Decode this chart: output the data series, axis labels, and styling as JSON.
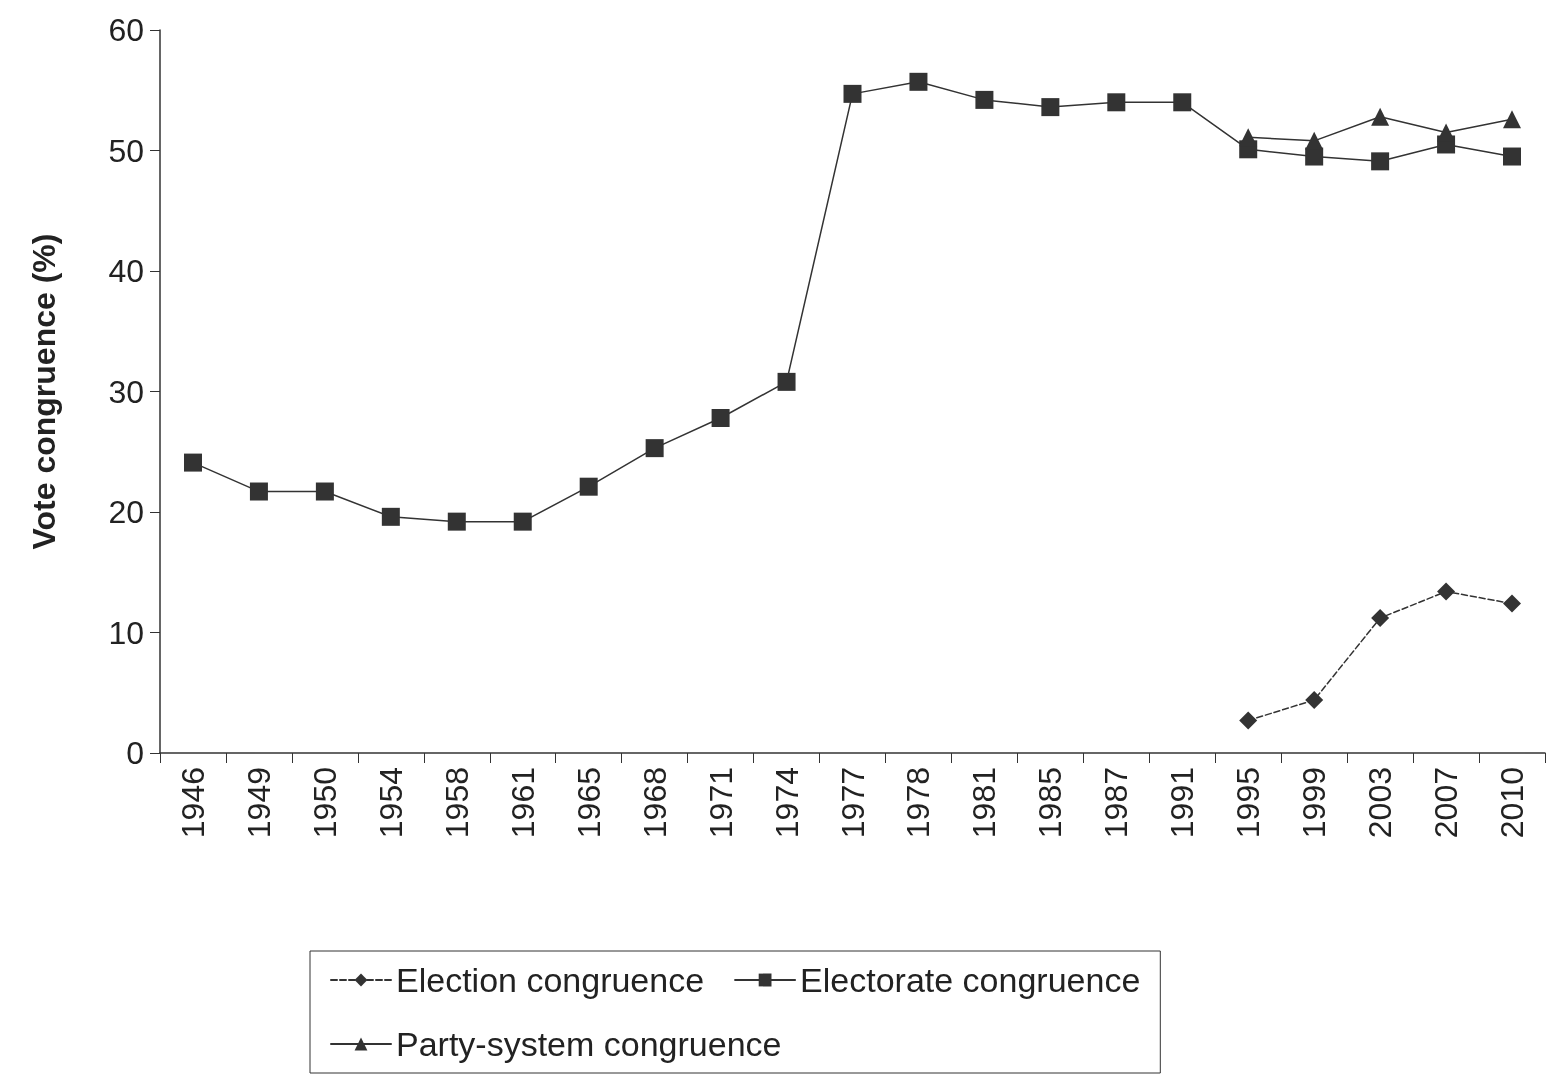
{
  "chart_data": {
    "type": "line",
    "categories": [
      "1946",
      "1949",
      "1950",
      "1954",
      "1958",
      "1961",
      "1965",
      "1968",
      "1971",
      "1974",
      "1977",
      "1978",
      "1981",
      "1985",
      "1987",
      "1991",
      "1995",
      "1999",
      "2003",
      "2007",
      "2010"
    ],
    "series": [
      {
        "name": "Election congruence",
        "color": "#333333",
        "marker": "diamond",
        "line_style": "dashed",
        "values": [
          null,
          null,
          null,
          null,
          null,
          null,
          null,
          null,
          null,
          null,
          null,
          null,
          null,
          null,
          null,
          null,
          2.7,
          4.4,
          11.2,
          13.4,
          12.4
        ]
      },
      {
        "name": "Electorate congruence",
        "color": "#333333",
        "marker": "square",
        "line_style": "solid",
        "values": [
          24.1,
          21.7,
          21.7,
          19.6,
          19.2,
          19.2,
          22.1,
          25.3,
          27.8,
          30.8,
          54.7,
          55.7,
          54.2,
          53.6,
          54.0,
          54.0,
          50.1,
          49.5,
          49.1,
          50.5,
          49.5
        ]
      },
      {
        "name": "Party-system congruence",
        "color": "#333333",
        "marker": "triangle",
        "line_style": "solid",
        "values": [
          null,
          null,
          null,
          null,
          null,
          null,
          null,
          null,
          null,
          null,
          null,
          null,
          null,
          null,
          null,
          null,
          51.1,
          50.8,
          52.8,
          51.5,
          52.6
        ]
      }
    ],
    "ylabel": "Vote congruence (%)",
    "ylim": [
      0,
      60
    ],
    "yticks": [
      0,
      10,
      20,
      30,
      40,
      50,
      60
    ],
    "grid": false,
    "legend": "bottom"
  }
}
